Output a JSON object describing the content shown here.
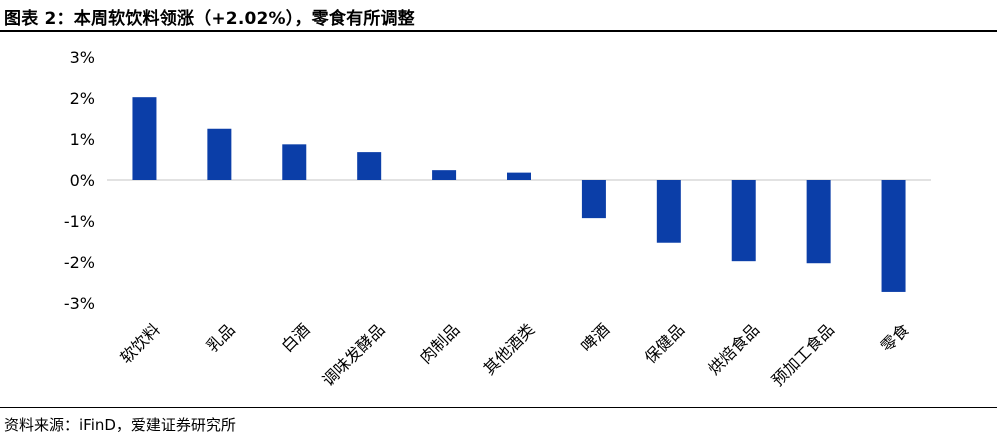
{
  "header": {
    "title": "图表 2：本周软饮料领涨（+2.02%），零食有所调整"
  },
  "footer": {
    "source": "资料来源：iFinD，爱建证券研究所"
  },
  "colors": {
    "bar": "#0b3ea8",
    "zero_line": "#d9d9d9",
    "rule": "#000000"
  },
  "chart_data": {
    "type": "bar",
    "categories": [
      "软饮料",
      "乳品",
      "白酒",
      "调味发酵品",
      "肉制品",
      "其他酒类",
      "啤酒",
      "保健品",
      "烘焙食品",
      "预加工食品",
      "零食"
    ],
    "values": [
      2.02,
      1.25,
      0.87,
      0.68,
      0.24,
      0.18,
      -0.93,
      -1.53,
      -1.98,
      -2.03,
      -2.73
    ],
    "ylim": [
      -3,
      3
    ],
    "yticks": [
      3,
      2,
      1,
      0,
      -1,
      -2,
      -3
    ],
    "ytick_labels": [
      "3%",
      "2%",
      "1%",
      "0%",
      "-1%",
      "-2%",
      "-3%"
    ],
    "xlabel": "",
    "ylabel": "",
    "grid": false,
    "legend": "none"
  }
}
